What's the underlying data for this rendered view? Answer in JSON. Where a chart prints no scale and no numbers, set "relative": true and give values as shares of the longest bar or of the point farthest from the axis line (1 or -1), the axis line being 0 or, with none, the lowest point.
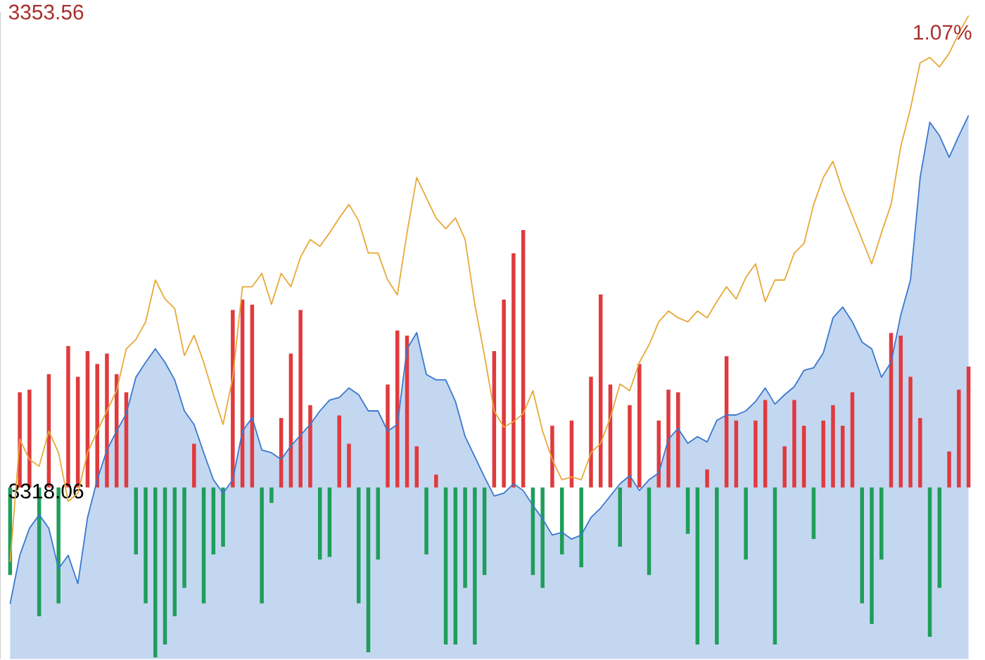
{
  "chart_data": [
    {
      "type": "line",
      "categories": [
        null,
        null,
        null,
        null,
        null,
        null,
        null,
        null,
        null,
        null,
        null,
        null,
        null,
        null,
        null,
        null,
        null,
        null,
        null,
        null,
        null,
        null,
        null,
        null,
        null,
        null,
        null,
        null,
        null,
        null,
        null,
        null,
        null,
        null,
        null,
        null,
        null,
        null,
        null,
        null,
        null,
        null,
        null,
        null,
        null,
        null,
        null,
        null,
        null,
        null,
        null,
        null,
        null,
        null,
        null,
        null,
        null,
        null,
        null,
        null,
        null,
        null,
        null,
        null,
        null,
        null,
        null,
        null,
        null,
        null,
        null,
        null,
        null,
        null,
        null,
        null,
        null,
        null,
        null,
        null,
        null,
        null,
        null,
        null,
        null,
        null,
        null,
        null,
        null,
        null,
        null,
        null,
        null,
        null,
        null,
        null,
        null,
        null,
        null,
        null
      ],
      "ylim": [
        3305.6,
        3353.56
      ],
      "yticks": [
        {
          "value": 3318.06,
          "label": "3318.06"
        },
        {
          "value": 3353.56,
          "label": "3353.56"
        }
      ],
      "annotations": [
        "1.07%"
      ],
      "series": [
        {
          "type": "area",
          "color": "#3a78d0",
          "values": [
            3309.7,
            3313.3,
            3315.3,
            3316.3,
            3315.3,
            3312.3,
            3313.3,
            3311.2,
            3316.1,
            3318.9,
            3321.1,
            3322.5,
            3323.8,
            3326.5,
            3327.6,
            3328.6,
            3327.6,
            3326.3,
            3324.0,
            3323.0,
            3320.9,
            3318.9,
            3317.9,
            3318.9,
            3322.5,
            3323.5,
            3321.1,
            3320.9,
            3320.4,
            3321.4,
            3322.2,
            3323.0,
            3324.0,
            3324.8,
            3325.0,
            3325.7,
            3325.2,
            3324.0,
            3324.0,
            3322.5,
            3323.0,
            3328.6,
            3329.8,
            3326.7,
            3326.3,
            3326.3,
            3324.7,
            3322.1,
            3320.6,
            3319.1,
            3317.7,
            3317.9,
            3318.6,
            3318.1,
            3317.0,
            3316.0,
            3314.8,
            3315.0,
            3314.5,
            3314.8,
            3316.1,
            3316.8,
            3317.7,
            3318.6,
            3319.2,
            3318.1,
            3318.9,
            3319.4,
            3321.9,
            3322.7,
            3321.6,
            3322.1,
            3321.7,
            3323.3,
            3323.7,
            3323.7,
            3324.0,
            3324.7,
            3325.7,
            3324.5,
            3325.2,
            3325.8,
            3327.0,
            3327.2,
            3328.3,
            3330.9,
            3331.7,
            3330.6,
            3329.1,
            3328.6,
            3326.5,
            3327.6,
            3331.1,
            3333.7,
            3341.3,
            3345.4,
            3344.4,
            3342.8,
            3344.4,
            3345.9
          ]
        },
        {
          "color": "#e8a838",
          "values": [
            3312.8,
            3321.9,
            3320.4,
            3319.9,
            3322.5,
            3320.9,
            3317.3,
            3317.9,
            3320.9,
            3322.5,
            3324.0,
            3325.5,
            3328.6,
            3329.3,
            3330.6,
            3333.7,
            3332.3,
            3331.6,
            3328.1,
            3329.6,
            3327.6,
            3325.2,
            3323.0,
            3326.5,
            3333.2,
            3333.2,
            3334.2,
            3331.9,
            3334.2,
            3333.2,
            3335.4,
            3336.7,
            3336.2,
            3337.2,
            3338.3,
            3339.3,
            3338.1,
            3335.7,
            3335.7,
            3333.7,
            3332.6,
            3337.2,
            3341.3,
            3339.8,
            3338.3,
            3337.5,
            3338.3,
            3336.7,
            3331.9,
            3328.1,
            3324.0,
            3322.8,
            3323.2,
            3323.8,
            3325.5,
            3322.5,
            3320.4,
            3318.9,
            3319.1,
            3318.9,
            3320.9,
            3321.6,
            3323.5,
            3326.0,
            3325.5,
            3327.6,
            3328.9,
            3330.6,
            3331.4,
            3330.9,
            3330.6,
            3331.4,
            3330.9,
            3332.1,
            3333.2,
            3332.3,
            3333.9,
            3334.9,
            3332.1,
            3333.7,
            3333.7,
            3335.7,
            3336.4,
            3339.3,
            3341.3,
            3342.5,
            3340.3,
            3338.5,
            3336.7,
            3334.9,
            3337.2,
            3339.3,
            3343.6,
            3346.4,
            3349.8,
            3350.2,
            3349.5,
            3350.5,
            3352.0,
            3353.3
          ]
        }
      ]
    },
    {
      "type": "bar",
      "categories": [
        null,
        null,
        null,
        null,
        null,
        null,
        null,
        null,
        null,
        null,
        null,
        null,
        null,
        null,
        null,
        null,
        null,
        null,
        null,
        null,
        null,
        null,
        null,
        null,
        null,
        null,
        null,
        null,
        null,
        null,
        null,
        null,
        null,
        null,
        null,
        null,
        null,
        null,
        null,
        null,
        null,
        null,
        null,
        null,
        null,
        null,
        null,
        null,
        null,
        null,
        null,
        null,
        null,
        null,
        null,
        null,
        null,
        null,
        null,
        null,
        null,
        null,
        null,
        null,
        null,
        null,
        null,
        null,
        null,
        null,
        null,
        null,
        null,
        null,
        null,
        null,
        null,
        null,
        null,
        null,
        null,
        null,
        null,
        null,
        null,
        null,
        null,
        null,
        null,
        null,
        null,
        null,
        null,
        null,
        null,
        null,
        null,
        null,
        null,
        null
      ],
      "relative": true,
      "series": [
        {
          "values": [
            -0.34,
            0.37,
            0.38,
            -0.5,
            0.44,
            -0.45,
            0.55,
            0.43,
            0.53,
            0.48,
            0.52,
            0.44,
            0.37,
            -0.26,
            -0.45,
            -0.66,
            -0.61,
            -0.5,
            -0.39,
            0.17,
            -0.45,
            -0.26,
            -0.23,
            0.69,
            0.73,
            0.71,
            -0.45,
            -0.06,
            0.27,
            0.52,
            0.69,
            0.32,
            -0.28,
            -0.27,
            0.28,
            0.17,
            -0.45,
            -0.64,
            -0.28,
            0.4,
            0.61,
            0.59,
            0.16,
            -0.26,
            0.05,
            -0.61,
            -0.61,
            -0.39,
            -0.61,
            -0.34,
            0.53,
            0.73,
            0.91,
            1,
            -0.34,
            -0.39,
            0.24,
            -0.26,
            0.26,
            -0.31,
            0.43,
            0.75,
            0.4,
            -0.23,
            0.32,
            0.48,
            -0.34,
            0.26,
            0.38,
            0.37,
            -0.18,
            -0.61,
            0.07,
            -0.61,
            0.51,
            0.26,
            -0.28,
            0.26,
            0.34,
            -0.61,
            0.16,
            0.34,
            0.24,
            -0.2,
            0.26,
            0.32,
            0.24,
            0.37,
            -0.45,
            -0.53,
            -0.28,
            0.6,
            0.59,
            0.43,
            0.27,
            -0.58,
            -0.39,
            0.14,
            0.38,
            0.47
          ],
          "colors": [
            "#1e9e5a",
            "#e03a3e",
            "#e03a3e",
            "#1e9e5a",
            "#e03a3e",
            "#1e9e5a",
            "#e03a3e",
            "#e03a3e",
            "#e03a3e",
            "#e03a3e",
            "#e03a3e",
            "#e03a3e",
            "#e03a3e",
            "#1e9e5a",
            "#1e9e5a",
            "#1e9e5a",
            "#1e9e5a",
            "#1e9e5a",
            "#1e9e5a",
            "#e03a3e",
            "#1e9e5a",
            "#1e9e5a",
            "#1e9e5a",
            "#e03a3e",
            "#e03a3e",
            "#e03a3e",
            "#1e9e5a",
            "#1e9e5a",
            "#e03a3e",
            "#e03a3e",
            "#e03a3e",
            "#e03a3e",
            "#1e9e5a",
            "#1e9e5a",
            "#e03a3e",
            "#e03a3e",
            "#1e9e5a",
            "#1e9e5a",
            "#1e9e5a",
            "#e03a3e",
            "#e03a3e",
            "#e03a3e",
            "#e03a3e",
            "#1e9e5a",
            "#e03a3e",
            "#1e9e5a",
            "#1e9e5a",
            "#1e9e5a",
            "#1e9e5a",
            "#1e9e5a",
            "#e03a3e",
            "#e03a3e",
            "#e03a3e",
            "#e03a3e",
            "#1e9e5a",
            "#1e9e5a",
            "#e03a3e",
            "#1e9e5a",
            "#e03a3e",
            "#1e9e5a",
            "#e03a3e",
            "#e03a3e",
            "#e03a3e",
            "#1e9e5a",
            "#e03a3e",
            "#e03a3e",
            "#1e9e5a",
            "#e03a3e",
            "#e03a3e",
            "#e03a3e",
            "#1e9e5a",
            "#1e9e5a",
            "#e03a3e",
            "#1e9e5a",
            "#e03a3e",
            "#e03a3e",
            "#1e9e5a",
            "#e03a3e",
            "#e03a3e",
            "#1e9e5a",
            "#e03a3e",
            "#e03a3e",
            "#e03a3e",
            "#1e9e5a",
            "#e03a3e",
            "#e03a3e",
            "#e03a3e",
            "#e03a3e",
            "#1e9e5a",
            "#1e9e5a",
            "#1e9e5a",
            "#e03a3e",
            "#e03a3e",
            "#e03a3e",
            "#e03a3e",
            "#1e9e5a",
            "#1e9e5a",
            "#e03a3e",
            "#e03a3e",
            "#e03a3e"
          ]
        }
      ]
    }
  ]
}
